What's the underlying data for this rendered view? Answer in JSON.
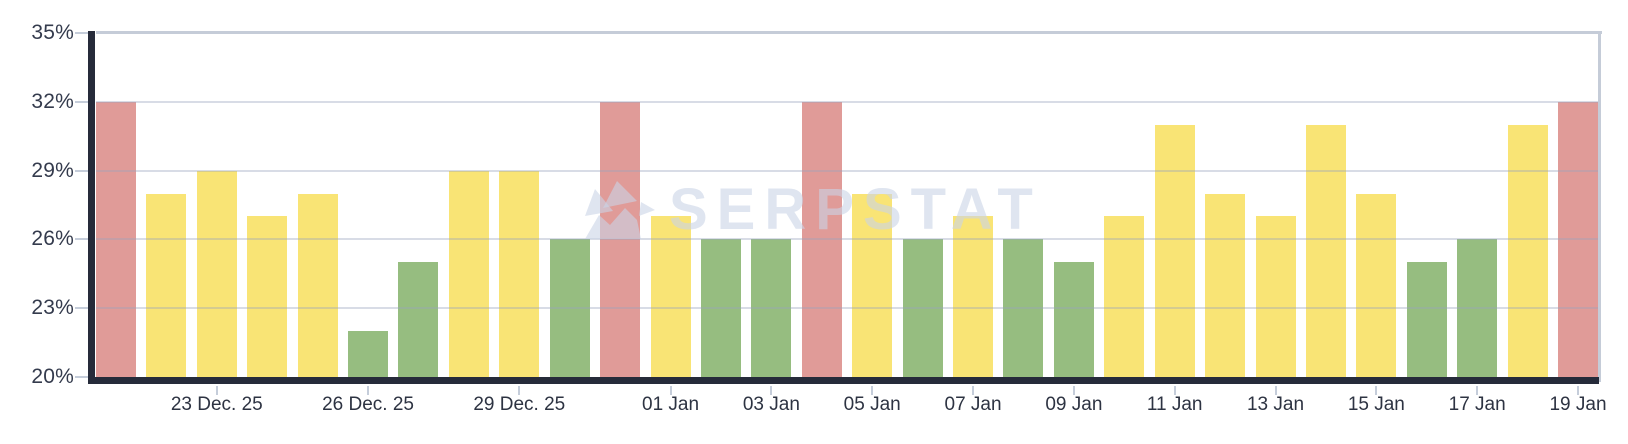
{
  "watermark": {
    "text": "SERPSTAT"
  },
  "colors": {
    "red": "#e09b98",
    "yellow": "#f9e475",
    "green": "#96bd80",
    "axis": "#262b3a",
    "grid": "rgba(152,164,188,0.38)",
    "border": "#c5ccd8",
    "tick": "#c5cdda",
    "y_label": "#343b4d",
    "x_label": "#2d3342",
    "watermark": "rgba(201,211,230,0.6)"
  },
  "chart_data": {
    "type": "bar",
    "title": "",
    "xlabel": "",
    "ylabel": "",
    "unit": "%",
    "ylim": [
      20,
      35
    ],
    "grid": "horizontal",
    "legend": "none",
    "y_ticks": [
      {
        "label": "35%",
        "value": 35
      },
      {
        "label": "32%",
        "value": 32
      },
      {
        "label": "29%",
        "value": 29
      },
      {
        "label": "26%",
        "value": 26
      },
      {
        "label": "23%",
        "value": 23
      },
      {
        "label": "20%",
        "value": 20
      }
    ],
    "gridline_values": [
      32,
      29,
      26,
      23
    ],
    "x_ticks": [
      {
        "label": "23 Dec. 25",
        "bar_index": 2
      },
      {
        "label": "26 Dec. 25",
        "bar_index": 5
      },
      {
        "label": "29 Dec. 25",
        "bar_index": 8
      },
      {
        "label": "01 Jan",
        "bar_index": 11
      },
      {
        "label": "03 Jan",
        "bar_index": 13
      },
      {
        "label": "05 Jan",
        "bar_index": 15
      },
      {
        "label": "07 Jan",
        "bar_index": 17
      },
      {
        "label": "09 Jan",
        "bar_index": 19
      },
      {
        "label": "11 Jan",
        "bar_index": 21
      },
      {
        "label": "13 Jan",
        "bar_index": 23
      },
      {
        "label": "15 Jan",
        "bar_index": 25
      },
      {
        "label": "17 Jan",
        "bar_index": 27
      },
      {
        "label": "19 Jan",
        "bar_index": 29
      }
    ],
    "bars": [
      {
        "value": 32,
        "status": "red"
      },
      {
        "value": 28,
        "status": "yellow"
      },
      {
        "value": 29,
        "status": "yellow"
      },
      {
        "value": 27,
        "status": "yellow"
      },
      {
        "value": 28,
        "status": "yellow"
      },
      {
        "value": 22,
        "status": "green"
      },
      {
        "value": 25,
        "status": "green"
      },
      {
        "value": 29,
        "status": "yellow"
      },
      {
        "value": 29,
        "status": "yellow"
      },
      {
        "value": 26,
        "status": "green"
      },
      {
        "value": 32,
        "status": "red"
      },
      {
        "value": 27,
        "status": "yellow"
      },
      {
        "value": 26,
        "status": "green"
      },
      {
        "value": 26,
        "status": "green"
      },
      {
        "value": 32,
        "status": "red"
      },
      {
        "value": 28,
        "status": "yellow"
      },
      {
        "value": 26,
        "status": "green"
      },
      {
        "value": 27,
        "status": "yellow"
      },
      {
        "value": 26,
        "status": "green"
      },
      {
        "value": 25,
        "status": "green"
      },
      {
        "value": 27,
        "status": "yellow"
      },
      {
        "value": 31,
        "status": "yellow"
      },
      {
        "value": 28,
        "status": "yellow"
      },
      {
        "value": 27,
        "status": "yellow"
      },
      {
        "value": 31,
        "status": "yellow"
      },
      {
        "value": 28,
        "status": "yellow"
      },
      {
        "value": 25,
        "status": "green"
      },
      {
        "value": 26,
        "status": "green"
      },
      {
        "value": 31,
        "status": "yellow"
      },
      {
        "value": 32,
        "status": "red"
      }
    ]
  }
}
